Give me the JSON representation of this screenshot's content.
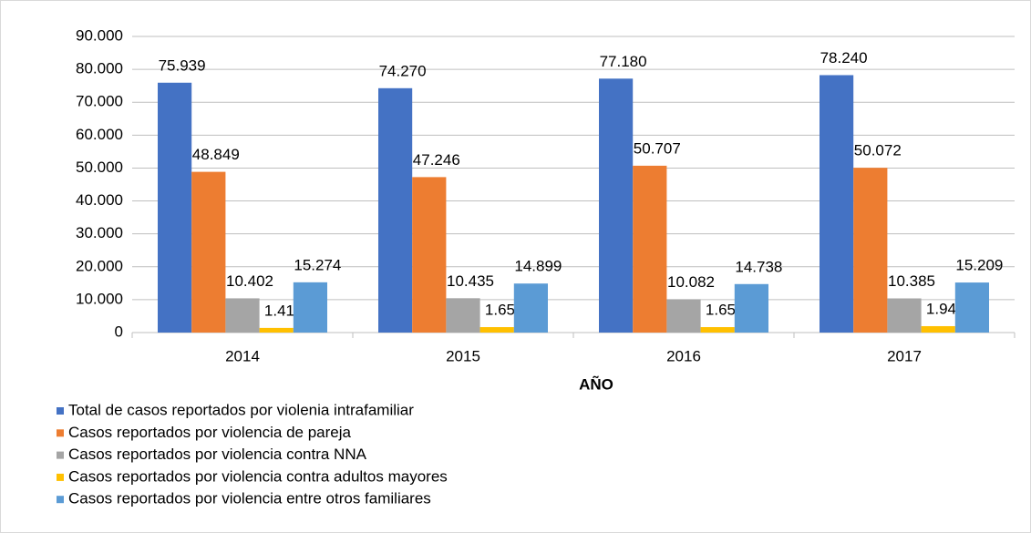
{
  "chart_data": {
    "type": "bar",
    "categories": [
      "2014",
      "2015",
      "2016",
      "2017"
    ],
    "x_label": "AÑO",
    "series": [
      {
        "name": "Total de casos reportados por violenia intrafamiliar",
        "color": "#4472c4",
        "values": [
          75939,
          74270,
          77180,
          78240
        ],
        "value_labels": [
          "75.939",
          "74.270",
          "77.180",
          "78.240"
        ]
      },
      {
        "name": "Casos reportados por violencia de pareja",
        "color": "#ed7d31",
        "values": [
          48849,
          47246,
          50707,
          50072
        ],
        "value_labels": [
          "48.849",
          "47.246",
          "50.707",
          "50.072"
        ]
      },
      {
        "name": "Casos reportados por violencia contra NNA",
        "color": "#a5a5a5",
        "values": [
          10402,
          10435,
          10082,
          10385
        ],
        "value_labels": [
          "10.402",
          "10.435",
          "10.082",
          "10.385"
        ]
      },
      {
        "name": "Casos reportados por violencia contra adultos mayores",
        "color": "#ffc000",
        "values": [
          1414,
          1651,
          1653,
          1944
        ],
        "value_labels": [
          "1.414",
          "1.651",
          "1.653",
          "1.944"
        ]
      },
      {
        "name": "Casos reportados por violencia entre otros familiares",
        "color": "#5b9bd5",
        "values": [
          15274,
          14899,
          14738,
          15209
        ],
        "value_labels": [
          "15.274",
          "14.899",
          "14.738",
          "15.209"
        ]
      }
    ],
    "ylim": [
      0,
      90000
    ],
    "yticks": [
      0,
      {
        "value": 10000,
        "label": "10.000"
      },
      {
        "value": 20000,
        "label": "20.000"
      },
      {
        "value": 30000,
        "label": "30.000"
      },
      {
        "value": 40000,
        "label": "40.000"
      },
      {
        "value": 50000,
        "label": "50.000"
      },
      {
        "value": 60000,
        "label": "60.000"
      },
      {
        "value": 70000,
        "label": "70.000"
      },
      {
        "value": 80000,
        "label": "80.000"
      },
      {
        "value": 90000,
        "label": "90.000"
      }
    ],
    "grid": true
  }
}
